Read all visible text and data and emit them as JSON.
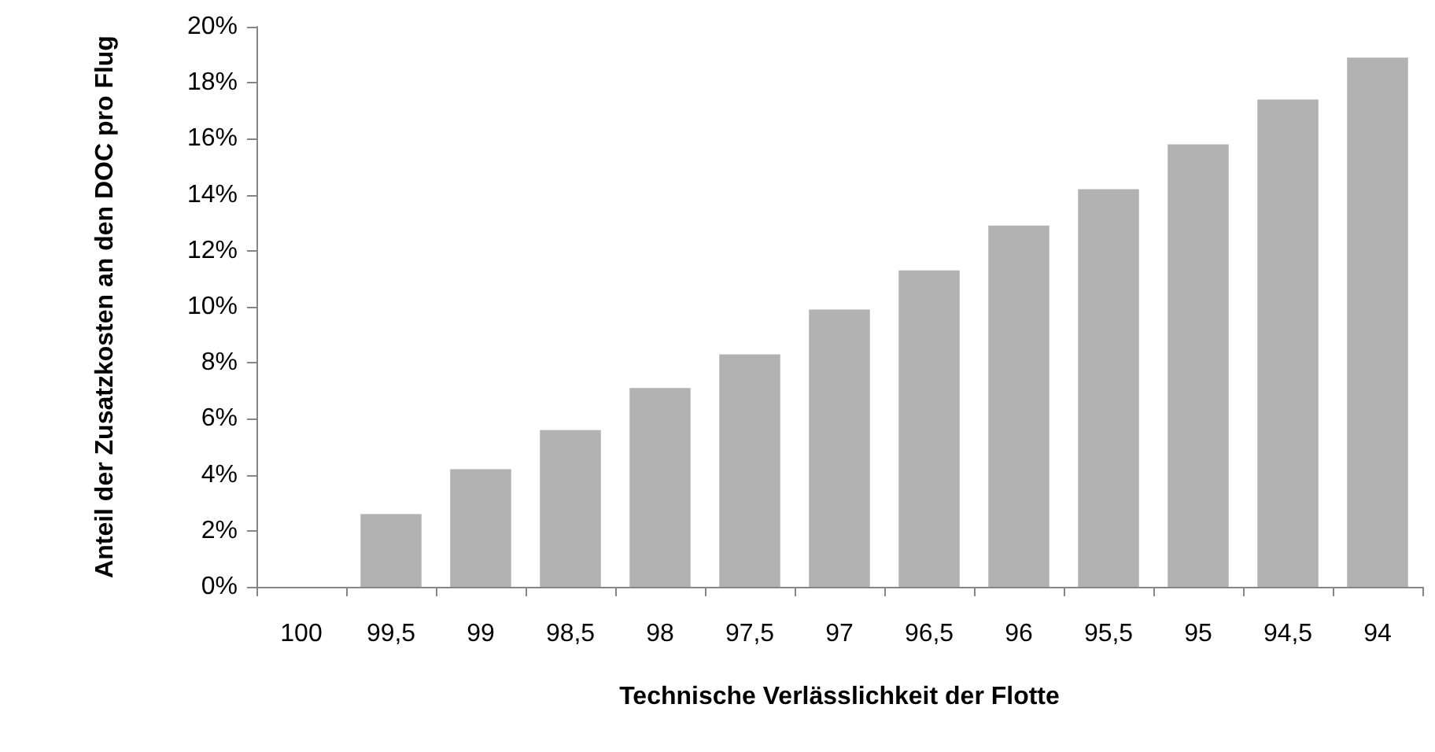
{
  "chart_data": {
    "type": "bar",
    "xlabel": "Technische Verlässlichkeit der Flotte",
    "ylabel": "Anteil der Zusatzkosten an den DOC pro Flug",
    "categories": [
      "100",
      "99,5",
      "99",
      "98,5",
      "98",
      "97,5",
      "97",
      "96,5",
      "96",
      "95,5",
      "95",
      "94,5",
      "94"
    ],
    "values": [
      0,
      2.6,
      4.2,
      5.6,
      7.1,
      8.3,
      9.9,
      11.3,
      12.9,
      14.2,
      15.8,
      17.4,
      18.9
    ],
    "color": "#b2b2b2",
    "ylim": [
      0,
      20
    ],
    "yticks": [
      {
        "value": 0,
        "label": "0%"
      },
      {
        "value": 2,
        "label": "2%"
      },
      {
        "value": 4,
        "label": "4%"
      },
      {
        "value": 6,
        "label": "6%"
      },
      {
        "value": 8,
        "label": "8%"
      },
      {
        "value": 10,
        "label": "10%"
      },
      {
        "value": 12,
        "label": "12%"
      },
      {
        "value": 14,
        "label": "14%"
      },
      {
        "value": 16,
        "label": "16%"
      },
      {
        "value": 18,
        "label": "18%"
      },
      {
        "value": 20,
        "label": "20%"
      }
    ],
    "grid": false
  }
}
